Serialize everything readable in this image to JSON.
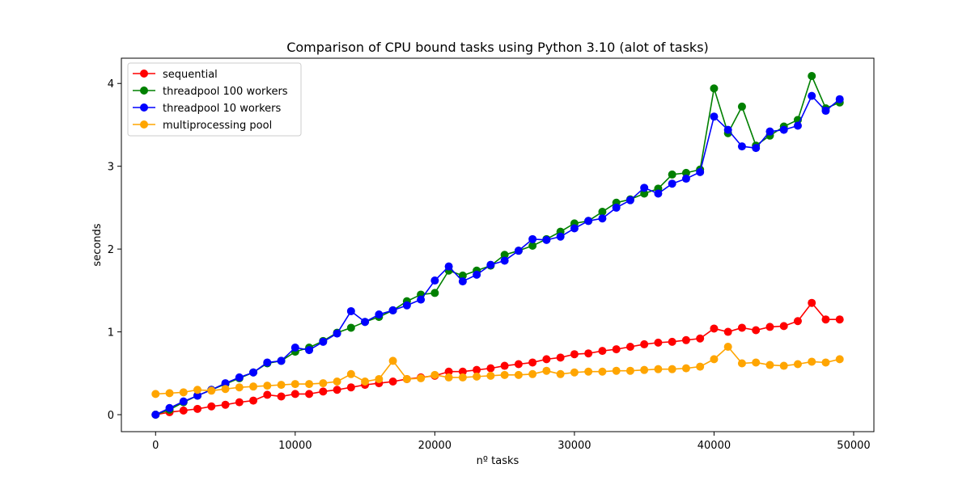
{
  "chart_data": {
    "type": "line",
    "title": "Comparison of CPU bound tasks using Python 3.10 (alot of tasks)",
    "xlabel": "nº tasks",
    "ylabel": "seconds",
    "xlim": [
      -2450,
      51450
    ],
    "ylim": [
      -0.205,
      4.305
    ],
    "xticks": [
      0,
      10000,
      20000,
      30000,
      40000,
      50000
    ],
    "xtick_labels": [
      "0",
      "10000",
      "20000",
      "30000",
      "40000",
      "50000"
    ],
    "yticks": [
      0,
      1,
      2,
      3,
      4
    ],
    "ytick_labels": [
      "0",
      "1",
      "2",
      "3",
      "4"
    ],
    "grid": false,
    "legend_position": "upper-left",
    "x": [
      0,
      1000,
      2000,
      3000,
      4000,
      5000,
      6000,
      7000,
      8000,
      9000,
      10000,
      11000,
      12000,
      13000,
      14000,
      15000,
      16000,
      17000,
      18000,
      19000,
      20000,
      21000,
      22000,
      23000,
      24000,
      25000,
      26000,
      27000,
      28000,
      29000,
      30000,
      31000,
      32000,
      33000,
      34000,
      35000,
      36000,
      37000,
      38000,
      39000,
      40000,
      41000,
      42000,
      43000,
      44000,
      45000,
      46000,
      47000,
      48000,
      49000
    ],
    "series": [
      {
        "name": "sequential",
        "color": "#ff0000",
        "values": [
          0.0,
          0.03,
          0.05,
          0.07,
          0.1,
          0.12,
          0.15,
          0.17,
          0.24,
          0.22,
          0.25,
          0.25,
          0.28,
          0.3,
          0.33,
          0.36,
          0.38,
          0.4,
          0.43,
          0.45,
          0.47,
          0.52,
          0.52,
          0.54,
          0.56,
          0.59,
          0.61,
          0.63,
          0.67,
          0.69,
          0.73,
          0.74,
          0.77,
          0.79,
          0.82,
          0.85,
          0.87,
          0.88,
          0.9,
          0.92,
          1.04,
          1.0,
          1.05,
          1.02,
          1.06,
          1.07,
          1.13,
          1.35,
          1.15,
          1.15
        ]
      },
      {
        "name": "threadpool 100 workers",
        "color": "#008000",
        "values": [
          0.0,
          0.06,
          0.15,
          0.23,
          0.3,
          0.37,
          0.44,
          0.51,
          0.62,
          0.65,
          0.76,
          0.81,
          0.89,
          0.99,
          1.05,
          1.12,
          1.18,
          1.26,
          1.37,
          1.45,
          1.47,
          1.74,
          1.68,
          1.74,
          1.8,
          1.93,
          1.98,
          2.04,
          2.12,
          2.21,
          2.31,
          2.34,
          2.45,
          2.56,
          2.6,
          2.67,
          2.73,
          2.9,
          2.92,
          2.96,
          3.94,
          3.4,
          3.72,
          3.25,
          3.37,
          3.48,
          3.56,
          4.09,
          3.7,
          3.77
        ]
      },
      {
        "name": "threadpool 10 workers",
        "color": "#0000ff",
        "values": [
          0.0,
          0.08,
          0.16,
          0.23,
          0.3,
          0.38,
          0.45,
          0.51,
          0.63,
          0.65,
          0.81,
          0.78,
          0.88,
          0.98,
          1.25,
          1.12,
          1.21,
          1.26,
          1.32,
          1.39,
          1.62,
          1.79,
          1.61,
          1.69,
          1.81,
          1.86,
          1.98,
          2.12,
          2.11,
          2.15,
          2.25,
          2.34,
          2.37,
          2.5,
          2.59,
          2.74,
          2.67,
          2.79,
          2.85,
          2.93,
          3.6,
          3.44,
          3.24,
          3.22,
          3.42,
          3.44,
          3.49,
          3.85,
          3.67,
          3.81
        ]
      },
      {
        "name": "multiprocessing pool",
        "color": "#ffa500",
        "values": [
          0.25,
          0.26,
          0.27,
          0.3,
          0.29,
          0.31,
          0.33,
          0.34,
          0.35,
          0.36,
          0.37,
          0.37,
          0.38,
          0.4,
          0.49,
          0.4,
          0.43,
          0.65,
          0.43,
          0.44,
          0.48,
          0.45,
          0.45,
          0.46,
          0.47,
          0.48,
          0.48,
          0.49,
          0.53,
          0.49,
          0.51,
          0.52,
          0.52,
          0.53,
          0.53,
          0.54,
          0.55,
          0.55,
          0.56,
          0.58,
          0.67,
          0.82,
          0.62,
          0.63,
          0.6,
          0.59,
          0.61,
          0.64,
          0.63,
          0.67
        ]
      }
    ]
  }
}
